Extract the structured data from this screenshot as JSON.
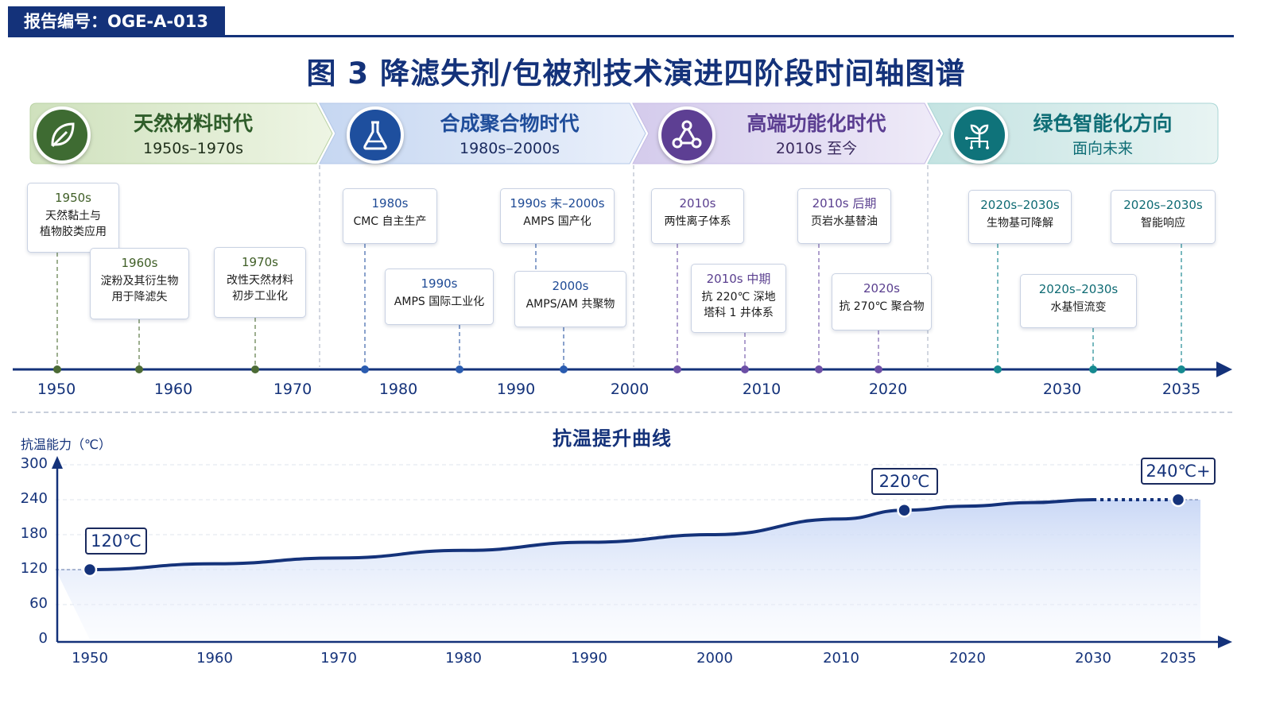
{
  "header": {
    "report_id": "报告编号：OGE-A-013"
  },
  "title": "图 3   降滤失剂/包被剂技术演进四阶段时间轴图谱",
  "phases": [
    {
      "title": "天然材料时代",
      "subtitle": "1950s–1970s",
      "icon": "leaf-icon",
      "color": "#2f5d2a",
      "bg": "#d6e6c4"
    },
    {
      "title": "合成聚合物时代",
      "subtitle": "1980s–2000s",
      "icon": "flask-icon",
      "color": "#1f4d9a",
      "bg": "#cfdcf3"
    },
    {
      "title": "高端功能化时代",
      "subtitle": "2010s 至今",
      "icon": "molecule-icon",
      "color": "#5b3e91",
      "bg": "#dcd3ee"
    },
    {
      "title": "绿色智能化方向",
      "subtitle": "面向未来",
      "icon": "plant-circuit-icon",
      "color": "#0f6e76",
      "bg": "#cde8e8"
    }
  ],
  "events": [
    {
      "year": "1950s",
      "desc": "天然黏土与\n植物胶类应用"
    },
    {
      "year": "1960s",
      "desc": "淀粉及其衍生物\n用于降滤失"
    },
    {
      "year": "1970s",
      "desc": "改性天然材料\n初步工业化"
    },
    {
      "year": "1980s",
      "desc": "CMC 自主生产"
    },
    {
      "year": "1990s",
      "desc": "AMPS 国际工业化"
    },
    {
      "year": "1990s 末–2000s",
      "desc": "AMPS 国产化"
    },
    {
      "year": "2000s",
      "desc": "AMPS/AM 共聚物"
    },
    {
      "year": "2010s",
      "desc": "两性离子体系"
    },
    {
      "year": "2010s 中期",
      "desc": "抗 220℃ 深地\n塔科 1 井体系"
    },
    {
      "year": "2010s 后期",
      "desc": "页岩水基替油"
    },
    {
      "year": "2020s",
      "desc": "抗 270℃ 聚合物"
    },
    {
      "year": "2020s–2030s",
      "desc": "生物基可降解"
    },
    {
      "year": "2020s–2030s",
      "desc": "水基恒流变"
    },
    {
      "year": "2020s–2030s",
      "desc": "智能响应"
    }
  ],
  "timeline": {
    "ticks": [
      "1950",
      "1960",
      "1970",
      "1980",
      "1990",
      "2000",
      "2010",
      "2020",
      "2030",
      "2035"
    ]
  },
  "chart_data": {
    "type": "area",
    "title": "抗温提升曲线",
    "ylabel": "抗温能力（℃）",
    "xlabel": "",
    "ylim": [
      0,
      300
    ],
    "yticks": [
      0,
      60,
      120,
      180,
      240,
      300
    ],
    "x_ticks": [
      1950,
      1960,
      1970,
      1980,
      1990,
      2000,
      2010,
      2020,
      2030,
      2035
    ],
    "x": [
      1950,
      1960,
      1970,
      1980,
      1990,
      2000,
      2010,
      2015,
      2020,
      2025,
      2030,
      2035
    ],
    "y": [
      120,
      130,
      140,
      153,
      167,
      180,
      207,
      222,
      229,
      235,
      240,
      240
    ],
    "projected_from": 2030,
    "points": [
      {
        "x": 1950,
        "y": 120,
        "label": "120℃"
      },
      {
        "x": 2015,
        "y": 222,
        "label": "220℃"
      },
      {
        "x": 2035,
        "y": 240,
        "label": "240℃+"
      }
    ],
    "line_color": "#14327a",
    "grid": true
  }
}
